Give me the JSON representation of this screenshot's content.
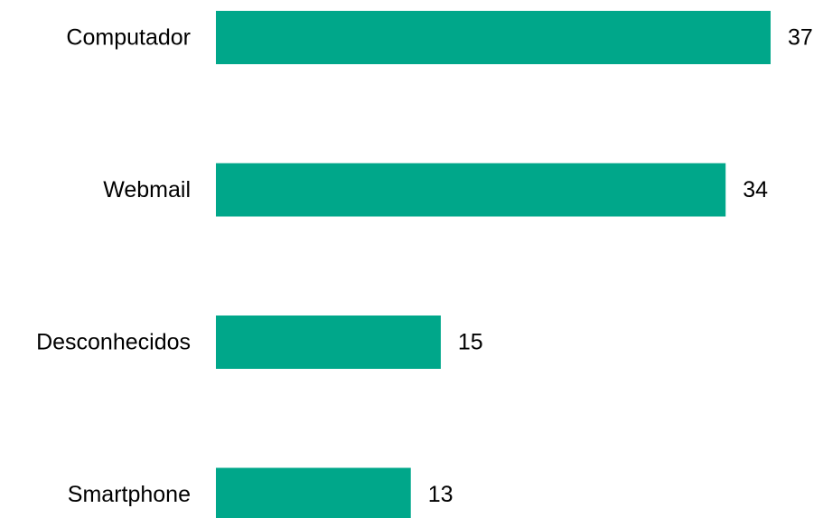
{
  "chart_data": {
    "type": "bar",
    "orientation": "horizontal",
    "categories": [
      "Computador",
      "Webmail",
      "Desconhecidos",
      "Smartphone"
    ],
    "values": [
      37,
      34,
      15,
      13
    ],
    "data_labels": [
      "37",
      "34",
      "15",
      "13"
    ],
    "title": "",
    "xlabel": "",
    "ylabel": "",
    "xlim": [
      0,
      37
    ],
    "grid": false,
    "legend": "none",
    "bar_color": "#00A78A"
  }
}
